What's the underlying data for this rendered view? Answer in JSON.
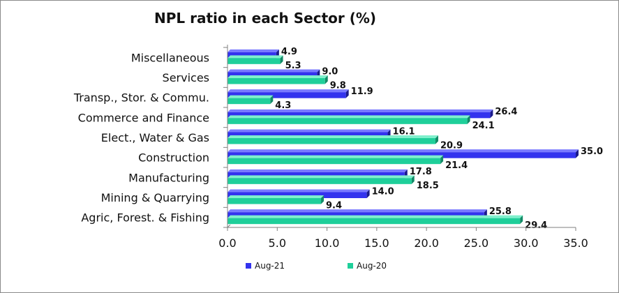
{
  "chart_data": {
    "type": "bar",
    "orientation": "horizontal",
    "title": "NPL ratio in each Sector (%)",
    "xlabel": "",
    "ylabel": "",
    "xlim": [
      0,
      35
    ],
    "x_ticks": [
      "0.0",
      "5.0",
      "10.0",
      "15.0",
      "20.0",
      "25.0",
      "30.0",
      "35.0"
    ],
    "categories": [
      "Miscellaneous",
      "Services",
      "Transp., Stor. & Commu.",
      "Commerce and Finance",
      "Elect., Water & Gas",
      "Construction",
      "Manufacturing",
      "Mining & Quarrying",
      "Agric, Forest. & Fishing"
    ],
    "series": [
      {
        "name": "Aug-21",
        "color": "#3333ee",
        "values": [
          4.9,
          9.0,
          11.9,
          26.4,
          16.1,
          35.0,
          17.8,
          14.0,
          25.8
        ]
      },
      {
        "name": "Aug-20",
        "color": "#1fcf9a",
        "values": [
          5.3,
          9.8,
          4.3,
          24.1,
          20.9,
          21.4,
          18.5,
          9.4,
          29.4
        ]
      }
    ],
    "data_labels": [
      [
        "4.9",
        "9.0",
        "11.9",
        "26.4",
        "16.1",
        "35.0",
        "17.8",
        "14.0",
        "25.8"
      ],
      [
        "5.3",
        "9.8",
        "4.3",
        "24.1",
        "20.9",
        "21.4",
        "18.5",
        "9.4",
        "29.4"
      ]
    ],
    "grid": false,
    "legend_position": "bottom"
  }
}
